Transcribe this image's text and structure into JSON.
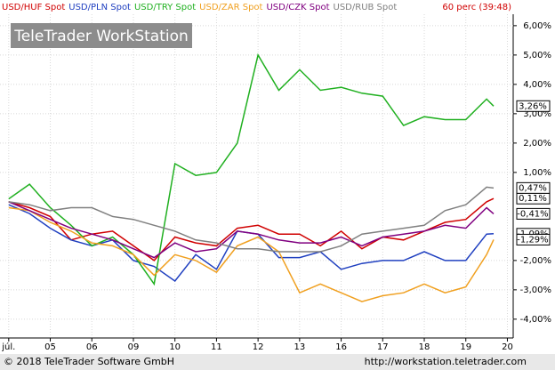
{
  "chart_data": {
    "type": "line",
    "title": "TeleTrader WorkStation",
    "interval": "60 perc (39:48)",
    "copyright": "© 2018 TeleTrader Software GmbH",
    "url": "http://workstation.teletrader.com",
    "x": [
      0,
      0.5,
      1,
      1.5,
      2,
      2.5,
      3,
      3.5,
      4,
      4.5,
      5,
      5.5,
      6,
      6.5,
      7,
      7.5,
      8,
      8.5,
      9,
      9.5,
      10,
      10.5,
      11,
      11.5,
      11.67
    ],
    "xlim": [
      -0.21,
      12.14
    ],
    "xticks": [
      {
        "value": 0,
        "label": "júl."
      },
      {
        "value": 1,
        "label": "05"
      },
      {
        "value": 2,
        "label": "06"
      },
      {
        "value": 3,
        "label": "09"
      },
      {
        "value": 4,
        "label": "10"
      },
      {
        "value": 5,
        "label": "11"
      },
      {
        "value": 6,
        "label": "12"
      },
      {
        "value": 7,
        "label": "13"
      },
      {
        "value": 8,
        "label": "16"
      },
      {
        "value": 9,
        "label": "17"
      },
      {
        "value": 10,
        "label": "18"
      },
      {
        "value": 11,
        "label": "19"
      },
      {
        "value": 12,
        "label": "20"
      }
    ],
    "ylim": [
      -4.58,
      6.39
    ],
    "yticks": [
      {
        "value": 6,
        "label": "6,00%"
      },
      {
        "value": 5,
        "label": "5,00%"
      },
      {
        "value": 4,
        "label": "4,00%"
      },
      {
        "value": 3,
        "label": "3,00%"
      },
      {
        "value": 2,
        "label": "2,00%"
      },
      {
        "value": 1,
        "label": "1,00%"
      },
      {
        "value": -2,
        "label": "-2,00%"
      },
      {
        "value": -3,
        "label": "-3,00%"
      },
      {
        "value": -4,
        "label": "-4,00%"
      }
    ],
    "grid": true,
    "series": [
      {
        "name": "USD/HUF Spot",
        "color": "#d00000",
        "values": [
          0,
          -0.2,
          -0.5,
          -1.3,
          -1.1,
          -1.0,
          -1.5,
          -2.0,
          -1.2,
          -1.4,
          -1.5,
          -0.9,
          -0.8,
          -1.1,
          -1.1,
          -1.5,
          -1.0,
          -1.6,
          -1.2,
          -1.3,
          -1.0,
          -0.7,
          -0.6,
          0.0,
          0.11
        ],
        "value_labels": [
          null,
          null,
          null,
          null,
          null,
          null,
          null,
          null,
          null,
          null,
          null,
          null,
          null,
          null,
          null,
          null,
          null,
          null,
          null,
          null,
          null,
          null,
          null,
          null,
          "0,11%"
        ]
      },
      {
        "name": "USD/PLN Spot",
        "color": "#2040c0",
        "values": [
          -0.1,
          -0.4,
          -0.9,
          -1.3,
          -1.5,
          -1.3,
          -2.0,
          -2.2,
          -2.7,
          -1.8,
          -2.3,
          -1.0,
          -1.1,
          -1.9,
          -1.9,
          -1.7,
          -2.3,
          -2.1,
          -2.0,
          -2.0,
          -1.7,
          -2.0,
          -2.0,
          -1.1,
          -1.09
        ],
        "value_labels": [
          null,
          null,
          null,
          null,
          null,
          null,
          null,
          null,
          null,
          null,
          null,
          null,
          null,
          null,
          null,
          null,
          null,
          null,
          null,
          null,
          null,
          null,
          null,
          null,
          "-1,09%"
        ]
      },
      {
        "name": "USD/TRY Spot",
        "color": "#20b020",
        "values": [
          0.1,
          0.6,
          -0.2,
          -0.8,
          -1.5,
          -1.2,
          -1.8,
          -2.8,
          1.3,
          0.9,
          1.0,
          2.0,
          5.0,
          3.8,
          4.5,
          3.8,
          3.9,
          3.7,
          3.6,
          2.6,
          2.9,
          2.8,
          2.8,
          3.5,
          3.26
        ],
        "value_labels": [
          null,
          null,
          null,
          null,
          null,
          null,
          null,
          null,
          null,
          null,
          null,
          null,
          null,
          null,
          null,
          null,
          null,
          null,
          null,
          null,
          null,
          null,
          null,
          null,
          "3,26%"
        ]
      },
      {
        "name": "USD/ZAR Spot",
        "color": "#f0a020",
        "values": [
          -0.2,
          -0.3,
          -0.7,
          -1.0,
          -1.4,
          -1.5,
          -1.8,
          -2.5,
          -1.8,
          -2.0,
          -2.4,
          -1.5,
          -1.2,
          -1.7,
          -3.1,
          -2.8,
          -3.1,
          -3.4,
          -3.2,
          -3.1,
          -2.8,
          -3.1,
          -2.9,
          -1.8,
          -1.29
        ],
        "value_labels": [
          null,
          null,
          null,
          null,
          null,
          null,
          null,
          null,
          null,
          null,
          null,
          null,
          null,
          null,
          null,
          null,
          null,
          null,
          null,
          null,
          null,
          null,
          null,
          null,
          "-1,29%"
        ]
      },
      {
        "name": "USD/CZK Spot",
        "color": "#800080",
        "values": [
          0,
          -0.3,
          -0.6,
          -0.9,
          -1.1,
          -1.3,
          -1.6,
          -1.9,
          -1.4,
          -1.7,
          -1.6,
          -1.0,
          -1.1,
          -1.3,
          -1.4,
          -1.4,
          -1.2,
          -1.5,
          -1.2,
          -1.1,
          -1.0,
          -0.8,
          -0.9,
          -0.2,
          -0.41
        ],
        "value_labels": [
          null,
          null,
          null,
          null,
          null,
          null,
          null,
          null,
          null,
          null,
          null,
          null,
          null,
          null,
          null,
          null,
          null,
          null,
          null,
          null,
          null,
          null,
          null,
          null,
          "-0,41%"
        ]
      },
      {
        "name": "USD/RUB Spot",
        "color": "#808080",
        "values": [
          0,
          -0.1,
          -0.3,
          -0.2,
          -0.2,
          -0.5,
          -0.6,
          -0.8,
          -1.0,
          -1.3,
          -1.4,
          -1.6,
          -1.6,
          -1.7,
          -1.7,
          -1.7,
          -1.5,
          -1.1,
          -1.0,
          -0.9,
          -0.8,
          -0.3,
          -0.1,
          0.5,
          0.47
        ],
        "value_labels": [
          null,
          null,
          null,
          null,
          null,
          null,
          null,
          null,
          null,
          null,
          null,
          null,
          null,
          null,
          null,
          null,
          null,
          null,
          null,
          null,
          null,
          null,
          null,
          null,
          "0,47%"
        ]
      }
    ]
  }
}
